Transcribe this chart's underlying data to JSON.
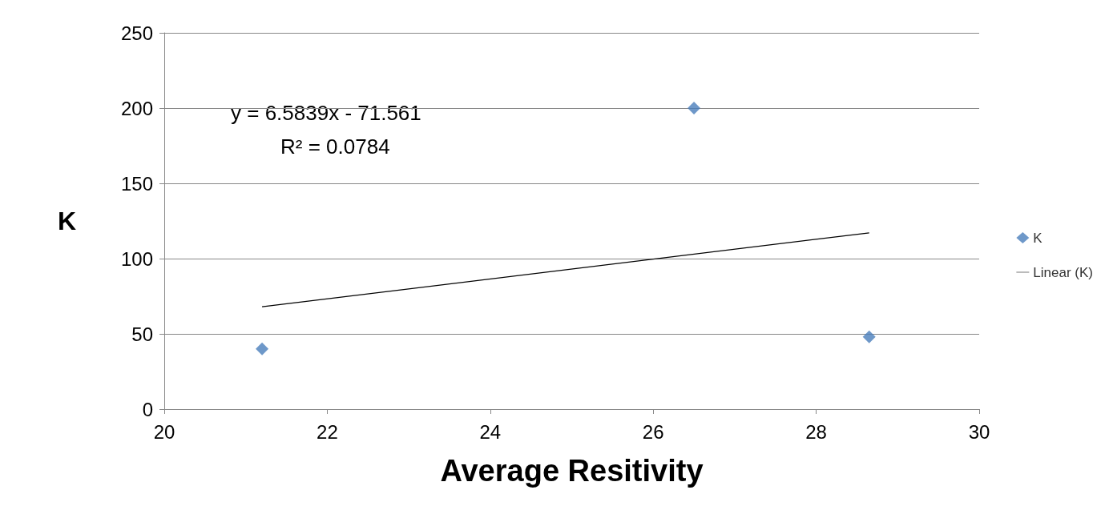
{
  "chart_data": {
    "type": "scatter",
    "xlabel": "Average Resitivity",
    "ylabel": "K",
    "marker": "diamond",
    "series": [
      {
        "name": "K",
        "color": "#4a7ebb",
        "x": [
          21.2,
          26.5,
          28.65
        ],
        "values": [
          40,
          200,
          48
        ]
      },
      {
        "name": "Linear (K)",
        "type": "line",
        "color": "#000000",
        "marker": "none",
        "x": [
          21.2,
          28.65
        ],
        "values": [
          68.0,
          117.1
        ]
      }
    ],
    "xlim": [
      20,
      30
    ],
    "xticks": [
      20,
      22,
      24,
      26,
      28,
      30
    ],
    "ylim": [
      0,
      250
    ],
    "yticks": [
      0,
      50,
      100,
      150,
      200,
      250
    ],
    "grid": "y",
    "legend": "right",
    "annotations": [
      "y = 6.5839x - 71.561",
      "R² = 0.0784"
    ]
  }
}
